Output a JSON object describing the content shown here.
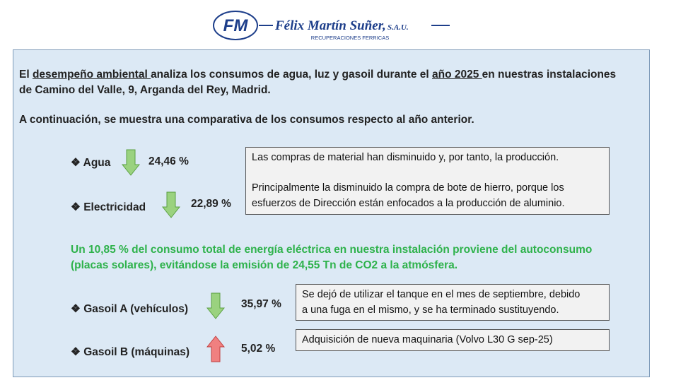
{
  "logo": {
    "mark": "FM",
    "company": "Félix Martín Suñer,",
    "suffix": "S.A.U.",
    "tagline": "RECUPERACIONES FERRICAS"
  },
  "intro": {
    "line1": [
      "El ",
      "desempeño ambiental ",
      "analiza los consumos de agua, luz y gasoil durante el ",
      "año 2025 ",
      "en nuestras instalaciones"
    ],
    "line2": "de Camino del Valle, 9, Arganda del Rey, Madrid."
  },
  "comparison_intro": "A continuación, se muestra una comparativa de los consumos respecto al año anterior.",
  "items": [
    {
      "label": "Agua",
      "value": "24,46 %"
    },
    {
      "label": "Electricidad",
      "value": "22,89 %"
    },
    {
      "label": "Gasoil A (vehículos)",
      "value": "35,97 %"
    },
    {
      "label": "Gasoil B (máquinas)",
      "value": "5,02 %"
    }
  ],
  "notes": [
    {
      "lines": [
        "Las compras de material han disminuido y, por tanto, la producción.",
        "",
        "Principalmente la disminuido la compra de bote de hierro, porque los",
        "esfuerzos de Dirección están enfocados a la producción de aluminio."
      ]
    },
    {
      "lines": [
        "Se dejó de utilizar el tanque en el mes de septiembre, debido",
        "a una fuga en el mismo, y se ha terminado sustituyendo."
      ]
    },
    {
      "lines": [
        "Adquisición de nueva maquinaria (Volvo L30 G sep-25)"
      ]
    }
  ],
  "highlight": [
    "Un 10,85 % del consumo total de energía eléctrica en nuestra instalación proviene del autoconsumo",
    "(placas solares), evitándose la emisión de 24,55 Tn de CO2 a la atmósfera."
  ]
}
